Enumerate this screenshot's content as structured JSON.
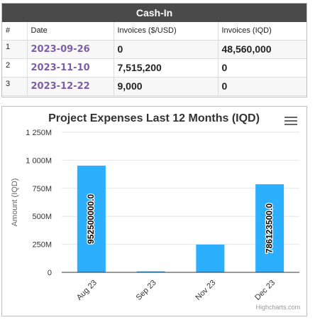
{
  "cash_in": {
    "title": "Cash-In",
    "columns": [
      "#",
      "Date",
      "Invoices ($/USD)",
      "Invoices (IQD)"
    ],
    "rows": [
      {
        "num": "1",
        "date": "2023-09-26",
        "usd": "0",
        "iqd": "48,560,000"
      },
      {
        "num": "2",
        "date": "2023-11-10",
        "usd": "7,515,200",
        "iqd": "0"
      },
      {
        "num": "3",
        "date": "2023-12-22",
        "usd": "9,000",
        "iqd": "0"
      }
    ]
  },
  "chart_data": {
    "type": "bar",
    "title": "Project Expenses Last 12 Months (IQD)",
    "xlabel": "",
    "ylabel": "Amount (IQD)",
    "categories": [
      "Aug 23",
      "Sep 23",
      "Nov 23",
      "Dec 23"
    ],
    "values": [
      952500000,
      9000000,
      248000000,
      786123500
    ],
    "data_labels": [
      "952500000.0",
      "",
      "",
      "786123500.0"
    ],
    "ylim": [
      0,
      1250000000
    ],
    "yticks": [
      0,
      250000000,
      500000000,
      750000000,
      1000000000,
      1250000000
    ],
    "ytick_labels": [
      "0",
      "250M",
      "500M",
      "750M",
      "1 000M",
      "1 250M"
    ],
    "grid": true,
    "bar_color": "#2caffe",
    "credits": "Highcharts.com"
  }
}
